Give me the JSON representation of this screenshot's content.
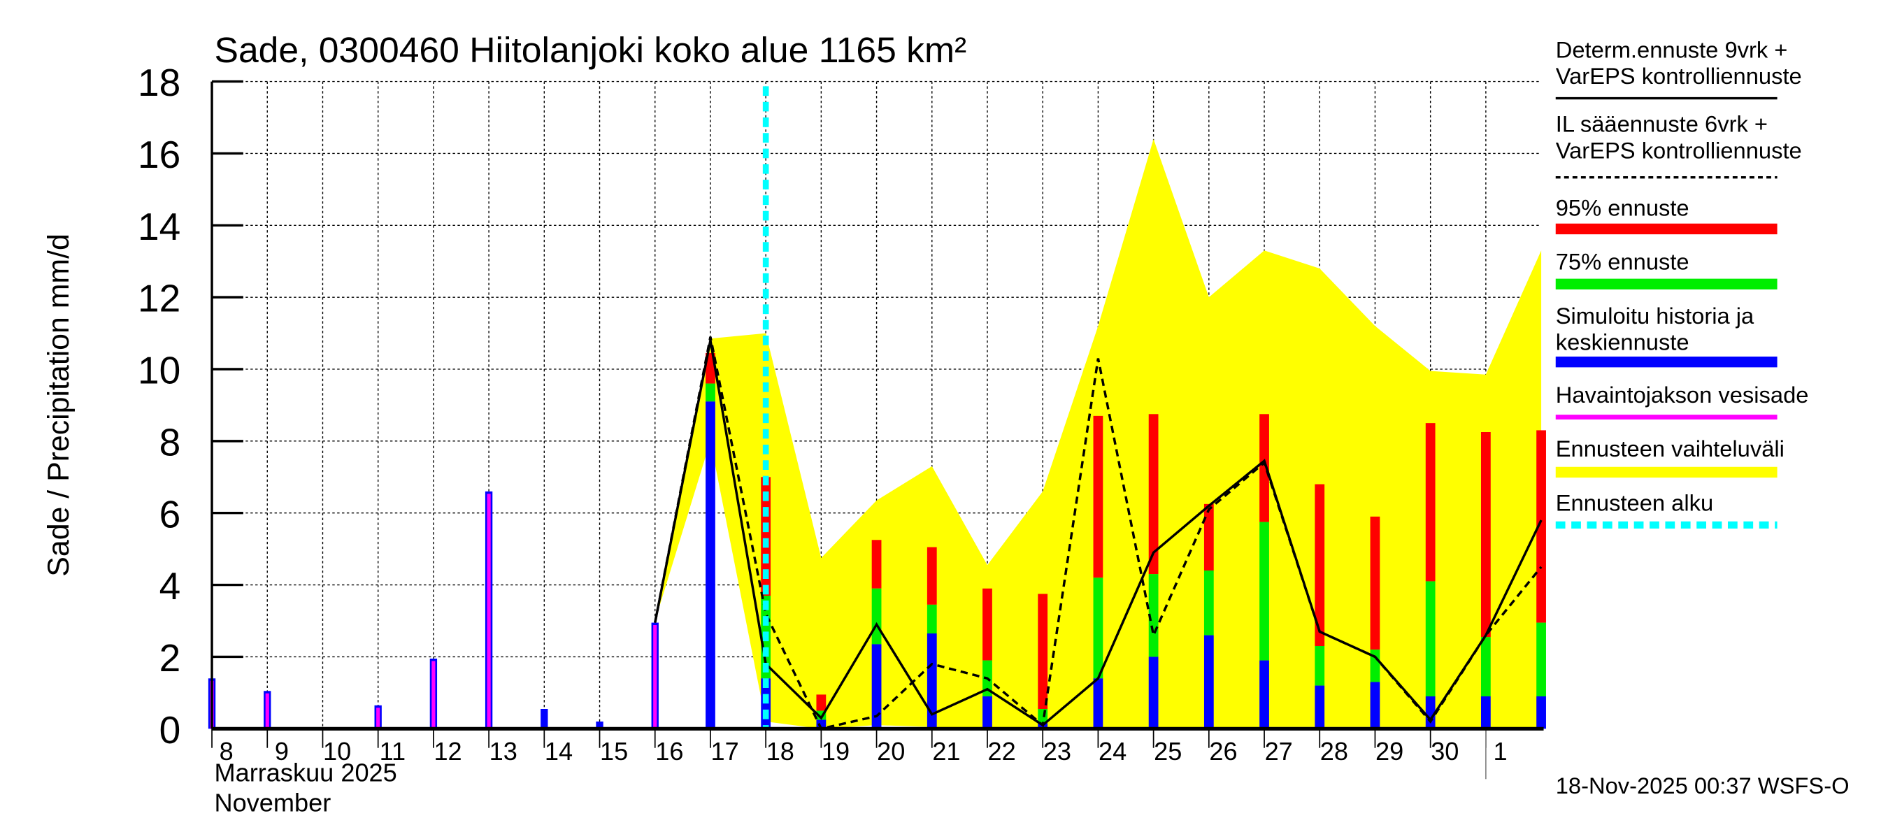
{
  "chart_data": {
    "type": "bar",
    "title": "Sade, 0300460 Hiitolanjoki koko alue 1165 km²",
    "ylabel": "Sade / Precipitation   mm/d",
    "xlabel_line1": "Marraskuu 2025",
    "xlabel_line2": "November",
    "timestamp": "18-Nov-2025 00:37 WSFS-O",
    "ylim": [
      0,
      18
    ],
    "yticks": [
      "0",
      "2",
      "4",
      "6",
      "8",
      "10",
      "12",
      "14",
      "16",
      "18"
    ],
    "grid": true,
    "x_tick_labels": [
      "8",
      "9",
      "10",
      "11",
      "12",
      "13",
      "14",
      "15",
      "16",
      "17",
      "18",
      "19",
      "20",
      "21",
      "22",
      "23",
      "24",
      "25",
      "26",
      "27",
      "28",
      "29",
      "30",
      "1"
    ],
    "forecast_start": "18",
    "colors": {
      "p95": "#ff0000",
      "p75": "#00ee00",
      "sim": "#0000ff",
      "obs": "#ff00ff",
      "range": "#ffff00",
      "start": "#00ffff"
    },
    "observed_history": {
      "days": [
        "8",
        "9",
        "10",
        "11",
        "12",
        "13",
        "14",
        "15",
        "16"
      ],
      "observed": [
        1.4,
        1.05,
        0,
        0.65,
        1.95,
        6.6,
        0,
        0,
        2.95
      ],
      "simulated": [
        1.4,
        1.05,
        0.02,
        0.65,
        1.95,
        6.6,
        0.55,
        0.2,
        2.95
      ]
    },
    "forecast_bars": {
      "days": [
        "17",
        "18",
        "19",
        "20",
        "21",
        "22",
        "23",
        "24",
        "25",
        "26",
        "27",
        "28",
        "29",
        "30",
        "1",
        "2"
      ],
      "mean": [
        9.1,
        1.4,
        0.25,
        2.35,
        2.65,
        0.9,
        0.15,
        1.4,
        2.0,
        2.6,
        1.9,
        1.2,
        1.3,
        0.9,
        0.9,
        0.9
      ],
      "p75": [
        9.6,
        3.7,
        0.5,
        3.9,
        3.45,
        1.9,
        0.55,
        4.2,
        4.3,
        4.4,
        5.75,
        2.3,
        2.2,
        4.1,
        2.55,
        2.95
      ],
      "p95": [
        10.45,
        7.0,
        0.95,
        5.25,
        5.05,
        3.9,
        3.75,
        8.7,
        8.75,
        6.25,
        8.75,
        6.8,
        5.9,
        8.5,
        8.25,
        8.3
      ]
    },
    "range_band": {
      "days": [
        "16",
        "17",
        "18",
        "19",
        "20",
        "21",
        "22",
        "23",
        "24",
        "25",
        "26",
        "27",
        "28",
        "29",
        "30",
        "1",
        "2"
      ],
      "upper": [
        3.0,
        10.85,
        11.0,
        4.75,
        6.35,
        7.3,
        4.55,
        6.6,
        11.2,
        16.4,
        12.0,
        13.3,
        12.8,
        11.2,
        9.95,
        9.85,
        13.3
      ],
      "lower": [
        3.0,
        8.0,
        0.2,
        0.0,
        0.1,
        0.05,
        0.0,
        0.0,
        0.0,
        0.0,
        0.02,
        0.05,
        0.05,
        0.05,
        0.05,
        0.0,
        0.0
      ]
    },
    "determ_line": {
      "days": [
        "16",
        "17",
        "18",
        "19",
        "20",
        "21",
        "22",
        "23",
        "24",
        "25",
        "26",
        "27",
        "28",
        "29",
        "30",
        "1",
        "2"
      ],
      "values": [
        2.95,
        10.8,
        1.8,
        0.3,
        2.9,
        0.4,
        1.1,
        0.1,
        1.4,
        4.9,
        6.2,
        7.45,
        2.7,
        2.0,
        0.25,
        2.6,
        5.8
      ]
    },
    "il_line": {
      "days": [
        "16",
        "17",
        "18",
        "19",
        "20",
        "21",
        "22",
        "23",
        "24",
        "25",
        "26",
        "27",
        "28",
        "29",
        "30",
        "1",
        "2"
      ],
      "values": [
        2.95,
        10.9,
        3.2,
        0.0,
        0.35,
        1.8,
        1.4,
        0.1,
        10.3,
        2.6,
        6.1,
        7.4,
        2.7,
        2.0,
        0.2,
        2.6,
        4.5
      ]
    }
  },
  "legend": [
    {
      "lines": [
        "Determ.ennuste 9vrk +",
        "VarEPS kontrolliennuste"
      ],
      "style": "solid",
      "color": "#000000"
    },
    {
      "lines": [
        "IL sääennuste 6vrk  +",
        "  VarEPS kontrolliennuste"
      ],
      "style": "dashed",
      "color": "#000000"
    },
    {
      "lines": [
        "95% ennuste"
      ],
      "style": "thick",
      "color": "#ff0000"
    },
    {
      "lines": [
        "75% ennuste"
      ],
      "style": "thick",
      "color": "#00ee00"
    },
    {
      "lines": [
        "Simuloitu historia ja",
        "keskiennuste"
      ],
      "style": "thick",
      "color": "#0000ff"
    },
    {
      "lines": [
        "Havaintojakson vesisade"
      ],
      "style": "thin",
      "color": "#ff00ff"
    },
    {
      "lines": [
        "Ennusteen vaihteluväli"
      ],
      "style": "thick",
      "color": "#ffff00"
    },
    {
      "lines": [
        "Ennusteen alku"
      ],
      "style": "dotted",
      "color": "#00ffff"
    }
  ]
}
